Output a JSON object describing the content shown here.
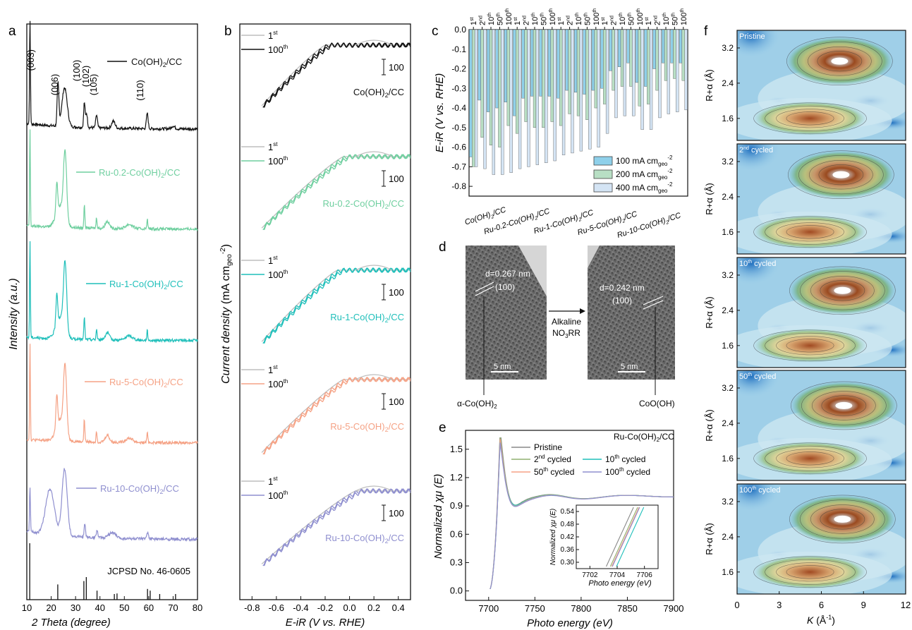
{
  "panels": {
    "a": {
      "letter": "a",
      "xlabel": "2 Theta (degree)",
      "ylabel": "Intensity (a.u.)",
      "ref_label": "JCPSD No. 46-0605",
      "xticks": [
        "10",
        "20",
        "30",
        "40",
        "50",
        "60",
        "70",
        "80"
      ],
      "peak_labels": [
        "(003)",
        "(006)",
        "(100)",
        "(102)",
        "(105)",
        "(110)"
      ]
    },
    "b": {
      "letter": "b",
      "xlabel": "E-iR (V vs. RHE)",
      "ylabel": "Current density (mA cm-2 geo)",
      "ylabel_main": "Current density",
      "ylabel_unit": " (mA cm",
      "ylabel_sub": "geo",
      "ylabel_sup": "-2",
      "ylabel_close": ")",
      "scale_label": "100",
      "cycle_labels": [
        "1st",
        "100th"
      ],
      "xticks": [
        "-0.8",
        "-0.6",
        "-0.4",
        "-0.2",
        "0.0",
        "0.2",
        "0.4"
      ]
    },
    "c": {
      "letter": "c",
      "ylabel": "E-iR (V vs. RHE)",
      "yticks": [
        "0.0",
        "-0.1",
        "-0.2",
        "-0.3",
        "-0.4",
        "-0.5",
        "-0.6",
        "-0.7",
        "-0.8"
      ],
      "top_labels": [
        "1st",
        "2nd",
        "10th",
        "50th",
        "100th"
      ],
      "legend": [
        "100 mA cm-2 geo",
        "200 mA cm-2 geo",
        "400 mA cm-2 geo"
      ]
    },
    "d": {
      "letter": "d",
      "left_d": "d=0.267 nm",
      "left_hkl": "(100)",
      "right_d": "d=0.242 nm",
      "right_hkl": "(100)",
      "scale": "5 nm",
      "arrow_top": "Alkaline",
      "arrow_bottom": "NO3RR",
      "left_phase": "α-Co(OH)2",
      "right_phase": "CoO(OH)"
    },
    "e": {
      "letter": "e",
      "xlabel": "Photo energy (eV)",
      "ylabel": "Normalized χμ (E)",
      "sample": "Ru-Co(OH)2/CC",
      "xticks": [
        "7700",
        "7750",
        "7800",
        "7850",
        "7900"
      ],
      "yticks": [
        "0.0",
        "0.3",
        "0.6",
        "0.9",
        "1.2",
        "1.5"
      ],
      "inset_xticks": [
        "7702",
        "7704",
        "7706"
      ],
      "inset_yticks": [
        "0.54",
        "0.48",
        "0.42",
        "0.36",
        "0.30"
      ],
      "inset_xlabel": "Photo energy (eV)",
      "inset_ylabel": "Normalized χμ (E)"
    },
    "f": {
      "letter": "f",
      "xlabel": "K (Å-1)",
      "ylabel": "R+α (Å)",
      "xticks": [
        "0",
        "3",
        "6",
        "9",
        "12"
      ],
      "yticks": [
        "3.2",
        "2.4",
        "1.6"
      ],
      "subpanels": [
        "Pristine",
        "2nd cycled",
        "10th cycled",
        "50th cycled",
        "100th cycled"
      ]
    }
  },
  "colors": {
    "Co(OH)2/CC": "#111111",
    "Ru-0.2-Co(OH)2/CC": "#6fcf9f",
    "Ru-1-Co(OH)2/CC": "#1fbfba",
    "Ru-5-Co(OH)2/CC": "#f5a285",
    "Ru-10-Co(OH)2/CC": "#8f8fcf",
    "first_cycle": "#bdbdbd",
    "bar_100": "#8fd0ea",
    "bar_200": "#b8dfc4",
    "bar_400": "#d4e4f4"
  },
  "chart_data": [
    {
      "type": "line",
      "panel": "a",
      "title": "",
      "xlabel": "2 Theta (degree)",
      "ylabel": "Intensity (a.u.)",
      "xlim": [
        10,
        80
      ],
      "series": [
        {
          "name": "Co(OH)2/CC",
          "peaks_2theta": [
            11.4,
            22.8,
            33.4,
            34.4,
            38.5,
            59.5
          ]
        },
        {
          "name": "Ru-0.2-Co(OH)2/CC",
          "peaks_2theta": [
            11.4,
            22.5,
            25.8,
            33.8,
            38.6,
            59.5
          ]
        },
        {
          "name": "Ru-1-Co(OH)2/CC",
          "peaks_2theta": [
            11.4,
            22.5,
            25.8,
            33.8,
            38.6,
            59.5
          ]
        },
        {
          "name": "Ru-5-Co(OH)2/CC",
          "peaks_2theta": [
            11.4,
            22.5,
            25.8,
            33.8,
            38.6,
            59.5
          ]
        },
        {
          "name": "Ru-10-Co(OH)2/CC",
          "peaks_2theta": [
            11.4,
            19.5,
            25.8,
            33.8,
            59.5
          ]
        }
      ],
      "reference": {
        "name": "JCPSD No. 46-0605",
        "positions": [
          11.2,
          22.7,
          33.4,
          34.4,
          38.8,
          45.9,
          47.0,
          59.5,
          60.6,
          64.5,
          71.0
        ],
        "heights": [
          1.0,
          0.27,
          0.33,
          0.4,
          0.16,
          0.1,
          0.11,
          0.19,
          0.16,
          0.1,
          0.1
        ]
      }
    },
    {
      "type": "line",
      "panel": "b",
      "title": "",
      "xlabel": "E-iR (V vs. RHE)",
      "ylabel": "Current density (mA cm-2 geo)",
      "xlim": [
        -0.9,
        0.5
      ],
      "series": [
        {
          "name": "Co(OH)2/CC",
          "onset_V": -0.2,
          "min_current": -390
        },
        {
          "name": "Ru-0.2-Co(OH)2/CC",
          "onset_V": -0.05,
          "min_current": -460
        },
        {
          "name": "Ru-1-Co(OH)2/CC",
          "onset_V": -0.1,
          "min_current": -460
        },
        {
          "name": "Ru-5-Co(OH)2/CC",
          "onset_V": -0.05,
          "min_current": -470
        },
        {
          "name": "Ru-10-Co(OH)2/CC",
          "onset_V": 0.05,
          "min_current": -470
        }
      ]
    },
    {
      "type": "bar",
      "panel": "c",
      "title": "",
      "ylabel": "E-iR (V vs. RHE)",
      "ylim": [
        -0.85,
        0.0
      ],
      "groups": [
        "Co(OH)2/CC",
        "Ru-0.2-Co(OH)2/CC",
        "Ru-1-Co(OH)2/CC",
        "Ru-5-Co(OH)2/CC",
        "Ru-10-Co(OH)2/CC"
      ],
      "cycles": [
        "1st",
        "2nd",
        "10th",
        "50th",
        "100th"
      ],
      "series": [
        {
          "name": "100 mA cm-2 geo",
          "values": [
            [
              -0.65,
              -0.36,
              -0.42,
              -0.4,
              -0.37
            ],
            [
              -0.44,
              -0.35,
              -0.34,
              -0.34,
              -0.34
            ],
            [
              -0.35,
              -0.31,
              -0.32,
              -0.33,
              -0.31
            ],
            [
              -0.3,
              -0.21,
              -0.19,
              -0.17,
              -0.27
            ],
            [
              -0.29,
              -0.2,
              -0.17,
              -0.17,
              -0.17
            ]
          ]
        },
        {
          "name": "200 mA cm-2 geo",
          "values": [
            [
              -0.7,
              -0.55,
              -0.59,
              -0.6,
              -0.49
            ],
            [
              -0.53,
              -0.47,
              -0.5,
              -0.5,
              -0.47
            ],
            [
              -0.49,
              -0.43,
              -0.44,
              -0.46,
              -0.4
            ],
            [
              -0.38,
              -0.31,
              -0.29,
              -0.29,
              -0.39
            ],
            [
              -0.38,
              -0.31,
              -0.26,
              -0.25,
              -0.26
            ]
          ]
        },
        {
          "name": "400 mA cm-2 geo",
          "values": [
            [
              -0.7,
              -0.71,
              -0.74,
              -0.74,
              -0.73
            ],
            [
              -0.71,
              -0.7,
              -0.69,
              -0.68,
              -0.67
            ],
            [
              -0.64,
              -0.63,
              -0.62,
              -0.61,
              -0.6
            ],
            [
              -0.53,
              -0.45,
              -0.44,
              -0.44,
              -0.51
            ],
            [
              -0.51,
              -0.45,
              -0.43,
              -0.42,
              -0.41
            ]
          ]
        }
      ]
    },
    {
      "type": "line",
      "panel": "e",
      "title": "",
      "xlabel": "Photo energy (eV)",
      "ylabel": "Normalized χμ (E)",
      "xlim": [
        7675,
        7900
      ],
      "ylim": [
        -0.1,
        1.7
      ],
      "series": [
        {
          "name": "Pristine",
          "color": "#888888",
          "white_line": 1.6
        },
        {
          "name": "2nd cycled",
          "color": "#90b070",
          "white_line": 1.55
        },
        {
          "name": "10th cycled",
          "color": "#1fbfba",
          "white_line": 1.5
        },
        {
          "name": "50th cycled",
          "color": "#f5a285",
          "white_line": 1.53
        },
        {
          "name": "100th cycled",
          "color": "#8f8fcf",
          "white_line": 1.5
        }
      ]
    },
    {
      "type": "heatmap",
      "panel": "f",
      "title": "",
      "xlabel": "K (Å-1)",
      "ylabel": "R+α (Å)",
      "xlim": [
        0,
        12
      ],
      "ylim": [
        1.1,
        3.6
      ],
      "maps": [
        {
          "name": "Pristine",
          "max_K": 7.3,
          "max_R": 2.9
        },
        {
          "name": "2nd cycled",
          "max_K": 7.4,
          "max_R": 2.9
        },
        {
          "name": "10th cycled",
          "max_K": 7.5,
          "max_R": 2.85
        },
        {
          "name": "50th cycled",
          "max_K": 7.6,
          "max_R": 2.8
        },
        {
          "name": "100th cycled",
          "max_K": 7.5,
          "max_R": 2.8
        }
      ]
    }
  ]
}
